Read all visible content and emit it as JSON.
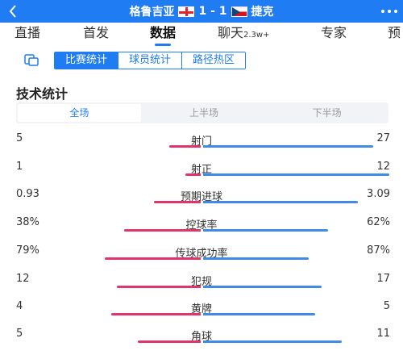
{
  "match": {
    "home_team": "格鲁吉亚",
    "score": "1 - 1",
    "away_team": "捷克"
  },
  "tabs": [
    {
      "label": "直播",
      "sub": ""
    },
    {
      "label": "首发",
      "sub": ""
    },
    {
      "label": "数据",
      "sub": ""
    },
    {
      "label": "聊天",
      "sub": "2.3w+"
    },
    {
      "label": "专家",
      "sub": ""
    },
    {
      "label": "预",
      "sub": ""
    }
  ],
  "active_tab": "数据",
  "segments": [
    "比赛统计",
    "球员统计",
    "路径热区"
  ],
  "active_segment": "比赛统计",
  "section_title": "技术统计",
  "periods": [
    "全场",
    "上半场",
    "下半场"
  ],
  "active_period": "全场",
  "colors": {
    "accent": "#1f7cf2",
    "home_bar": "#e0356b",
    "away_bar": "#3f8be6"
  },
  "stats": [
    {
      "label": "射门",
      "home": "5",
      "away": "27",
      "home_share": 0.156,
      "away_share": 0.844
    },
    {
      "label": "射正",
      "home": "1",
      "away": "12",
      "home_share": 0.077,
      "away_share": 0.923
    },
    {
      "label": "预期进球",
      "home": "0.93",
      "away": "3.09",
      "home_share": 0.231,
      "away_share": 0.769
    },
    {
      "label": "控球率",
      "home": "38%",
      "away": "62%",
      "home_share": 0.38,
      "away_share": 0.62
    },
    {
      "label": "传球成功率",
      "home": "79%",
      "away": "87%",
      "home_share": 0.476,
      "away_share": 0.524
    },
    {
      "label": "犯规",
      "home": "12",
      "away": "17",
      "home_share": 0.414,
      "away_share": 0.586
    },
    {
      "label": "黄牌",
      "home": "4",
      "away": "5",
      "home_share": 0.444,
      "away_share": 0.556
    },
    {
      "label": "角球",
      "home": "5",
      "away": "11",
      "home_share": 0.313,
      "away_share": 0.688
    }
  ]
}
